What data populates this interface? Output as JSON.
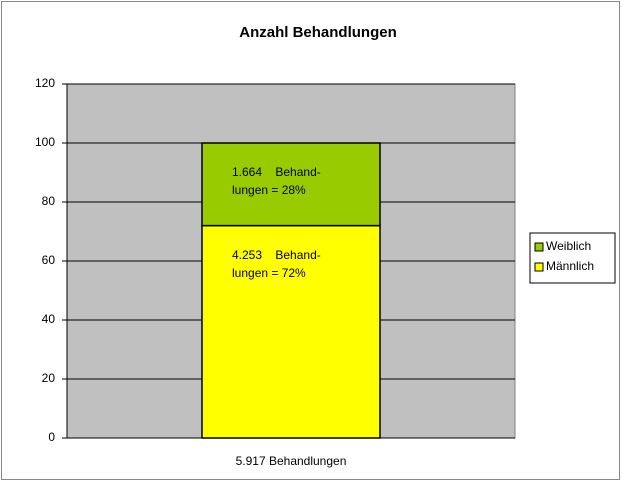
{
  "chart_data": {
    "type": "stacked_bar",
    "title": "Anzahl Behandlungen",
    "categories": [
      "5.917 Behandlungen"
    ],
    "series": [
      {
        "name": "Männlich",
        "color": "#ffff00",
        "values": [
          72
        ],
        "value_labels": [
          "4.253    Behand-\nlungen = 72%"
        ]
      },
      {
        "name": "Weiblich",
        "color": "#99cc00",
        "values": [
          28
        ],
        "value_labels": [
          "1.664    Behand-\nlungen = 28%"
        ]
      }
    ],
    "ylim": [
      0,
      120
    ],
    "yticks": [
      0,
      20,
      40,
      60,
      80,
      100,
      120
    ],
    "grid": true,
    "legend": "right"
  }
}
